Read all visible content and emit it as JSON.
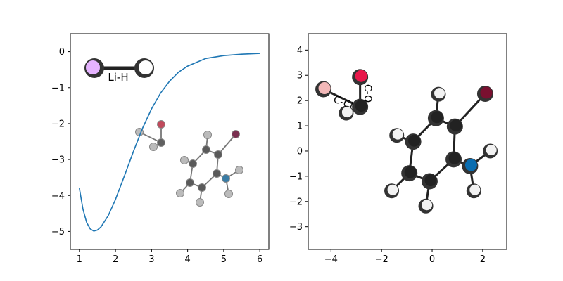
{
  "chart_data": [
    {
      "type": "line",
      "x": [
        1.0,
        1.1,
        1.2,
        1.3,
        1.4,
        1.5,
        1.6,
        1.8,
        2.0,
        2.25,
        2.5,
        2.75,
        3.0,
        3.25,
        3.5,
        3.75,
        4.0,
        4.5,
        5.0,
        5.5,
        6.0
      ],
      "series": [
        {
          "color": "#1f77b4",
          "values": [
            -3.8,
            -4.38,
            -4.75,
            -4.93,
            -4.99,
            -4.96,
            -4.87,
            -4.56,
            -4.11,
            -3.45,
            -2.77,
            -2.13,
            -1.59,
            -1.15,
            -0.82,
            -0.57,
            -0.4,
            -0.19,
            -0.11,
            -0.07,
            -0.05
          ]
        }
      ],
      "xlim": [
        0.75,
        6.25
      ],
      "ylim": [
        -5.5,
        0.5
      ],
      "xticks": [
        "1",
        "2",
        "3",
        "4",
        "5",
        "6"
      ],
      "yticks": [
        "0",
        "−1",
        "−2",
        "−3",
        "−4",
        "−5"
      ],
      "molecule_label": "Li-H",
      "molecule_colors": {
        "Li": "#e5b3ff",
        "H": "#ffffff"
      },
      "inset_molecule_atom_colors": {
        "C": "#4d4d4d",
        "H": "#cccccc",
        "O": "#d9284d",
        "N": "#3f8fbf",
        "Br": "#a63d5c"
      }
    },
    {
      "type": "scatter",
      "atoms": [
        {
          "el": "O",
          "x": -2.85,
          "y": 2.93,
          "color": "#e8174a"
        },
        {
          "el": "C",
          "x": -2.85,
          "y": 1.75,
          "color": "#222222"
        },
        {
          "el": "Cl",
          "x": -4.3,
          "y": 2.45,
          "color": "#f2b8b8"
        },
        {
          "el": "H",
          "x": -3.4,
          "y": 1.5,
          "color": "#f2f2f2"
        },
        {
          "el": "C",
          "x": 0.15,
          "y": 1.3,
          "color": "#222222"
        },
        {
          "el": "C",
          "x": 0.9,
          "y": 0.97,
          "color": "#222222"
        },
        {
          "el": "C",
          "x": 0.85,
          "y": -0.33,
          "color": "#222222"
        },
        {
          "el": "C",
          "x": -0.1,
          "y": -1.2,
          "color": "#222222"
        },
        {
          "el": "C",
          "x": -0.9,
          "y": -0.88,
          "color": "#222222"
        },
        {
          "el": "C",
          "x": -0.75,
          "y": 0.37,
          "color": "#222222"
        },
        {
          "el": "Br",
          "x": 2.1,
          "y": 2.27,
          "color": "#7a1030"
        },
        {
          "el": "N",
          "x": 1.5,
          "y": -0.6,
          "color": "#0a6db0"
        },
        {
          "el": "H",
          "x": 0.25,
          "y": 2.25,
          "color": "#f2f2f2"
        },
        {
          "el": "H",
          "x": -1.4,
          "y": 0.62,
          "color": "#f2f2f2"
        },
        {
          "el": "H",
          "x": -1.6,
          "y": -1.58,
          "color": "#f2f2f2"
        },
        {
          "el": "H",
          "x": -0.25,
          "y": -2.18,
          "color": "#f2f2f2"
        },
        {
          "el": "H",
          "x": 2.3,
          "y": 0.0,
          "color": "#f2f2f2"
        },
        {
          "el": "H",
          "x": 1.65,
          "y": -1.58,
          "color": "#f2f2f2"
        }
      ],
      "bonds": [
        [
          0,
          1
        ],
        [
          1,
          2
        ],
        [
          1,
          3
        ],
        [
          4,
          5
        ],
        [
          5,
          6
        ],
        [
          6,
          7
        ],
        [
          7,
          8
        ],
        [
          8,
          9
        ],
        [
          9,
          4
        ],
        [
          5,
          10
        ],
        [
          6,
          11
        ],
        [
          4,
          12
        ],
        [
          9,
          13
        ],
        [
          8,
          14
        ],
        [
          7,
          15
        ],
        [
          11,
          16
        ],
        [
          11,
          17
        ]
      ],
      "bond_labels": [
        "C-O",
        "C-Cl"
      ],
      "xlim": [
        -4.9,
        2.95
      ],
      "ylim": [
        -3.9,
        4.65
      ],
      "xticks": [
        "−4",
        "−2",
        "0",
        "2"
      ],
      "yticks": [
        "4",
        "3",
        "2",
        "1",
        "0",
        "−1",
        "−2",
        "−3"
      ]
    }
  ]
}
